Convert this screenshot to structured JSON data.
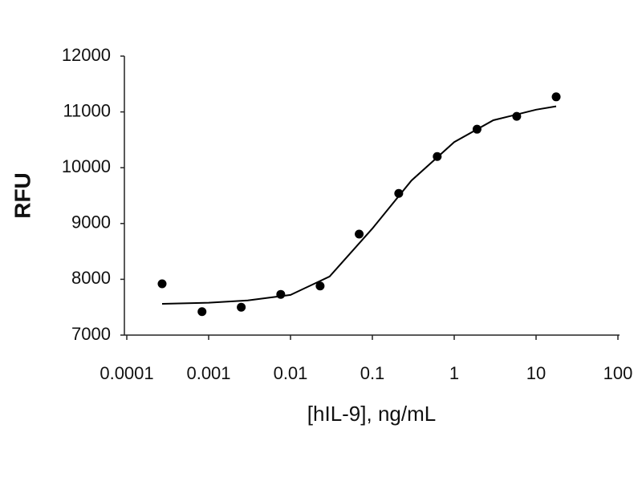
{
  "chart_data": {
    "type": "scatter",
    "xscale": "log",
    "x_label": "[hIL-9], ng/mL",
    "y_label": "RFU",
    "xlim": [
      0.0001,
      100
    ],
    "xticks": [
      0.0001,
      0.001,
      0.01,
      0.1,
      1,
      10,
      100
    ],
    "ylim": [
      7000,
      12000
    ],
    "yticks": [
      7000,
      8000,
      9000,
      10000,
      11000,
      12000
    ],
    "grid": false,
    "series": [
      {
        "mode": "markers",
        "color": "#000000",
        "x": [
          0.00027,
          0.00083,
          0.0025,
          0.0076,
          0.023,
          0.069,
          0.21,
          0.62,
          1.9,
          5.8,
          17.6
        ],
        "values": [
          7920,
          7420,
          7500,
          7730,
          7880,
          8810,
          9540,
          10200,
          10690,
          10920,
          11270
        ]
      },
      {
        "mode": "line",
        "color": "#000000",
        "x": [
          0.00027,
          0.001,
          0.003,
          0.01,
          0.03,
          0.1,
          0.3,
          1,
          3,
          10,
          17.6
        ],
        "values": [
          7560,
          7580,
          7620,
          7720,
          8050,
          8910,
          9770,
          10460,
          10850,
          11040,
          11100
        ]
      }
    ]
  }
}
